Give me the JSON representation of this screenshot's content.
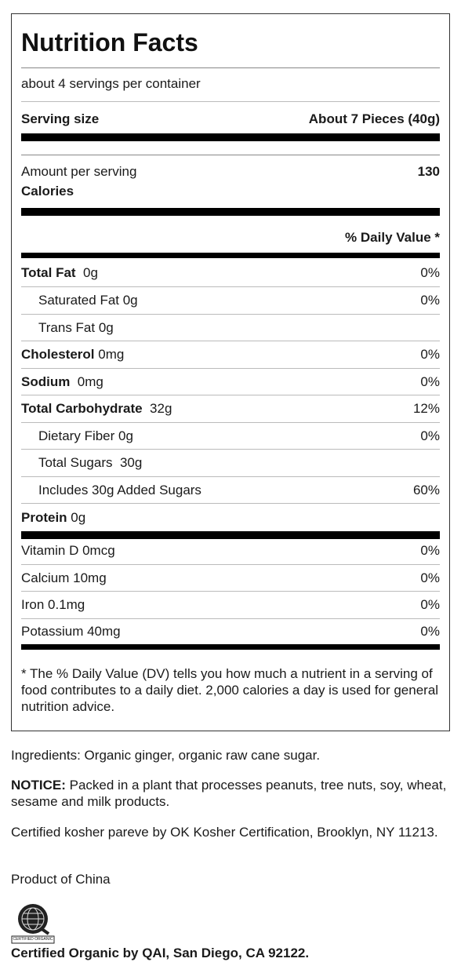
{
  "label": {
    "title": "Nutrition Facts",
    "servings_per_container": "about 4 servings per container",
    "serving_size_label": "Serving size",
    "serving_size_value": "About 7 Pieces (40g)",
    "amount_per_serving": "Amount per serving",
    "calories_label": "Calories",
    "calories_value": "130",
    "daily_value_header": "% Daily Value *",
    "nutrients": [
      {
        "name": "Total Fat",
        "amount": "0g",
        "dv": "0%"
      },
      {
        "name": "Saturated Fat 0g",
        "amount": "",
        "dv": "0%"
      },
      {
        "name": "Trans Fat 0g",
        "amount": "",
        "dv": ""
      },
      {
        "name": "Cholesterol",
        "amount": "0mg",
        "dv": "0%"
      },
      {
        "name": "Sodium",
        "amount": "0mg",
        "dv": "0%"
      },
      {
        "name": "Total Carbohydrate",
        "amount": "32g",
        "dv": "12%"
      },
      {
        "name": "Dietary Fiber 0g",
        "amount": "",
        "dv": "0%"
      },
      {
        "name": "Total Sugars  30g",
        "amount": "",
        "dv": ""
      },
      {
        "name": "Includes 30g Added Sugars",
        "amount": "",
        "dv": "60%"
      },
      {
        "name": "Protein",
        "amount": "0g",
        "dv": ""
      }
    ],
    "vitamins": [
      {
        "name": "Vitamin D 0mcg",
        "dv": "0%"
      },
      {
        "name": "Calcium 10mg",
        "dv": "0%"
      },
      {
        "name": "Iron 0.1mg",
        "dv": "0%"
      },
      {
        "name": "Potassium 40mg",
        "dv": "0%"
      }
    ],
    "footnote": "* The % Daily Value (DV) tells you how much a nutrient in a serving of food contributes to a daily diet. 2,000 calories a day is used for general nutrition advice."
  },
  "info": {
    "ingredients": "Ingredients: Organic ginger, organic raw cane sugar.",
    "notice_label": "NOTICE:",
    "notice_text": " Packed in a plant that processes peanuts, tree nuts, soy, wheat, sesame and milk products.",
    "kosher": "Certified kosher pareve by OK Kosher Certification, Brooklyn, NY 11213.",
    "origin": "Product of China",
    "logo_caption": "CERTIFIED ORGANIC",
    "certified_organic": "Certified Organic by QAI, San Diego, CA 92122."
  }
}
